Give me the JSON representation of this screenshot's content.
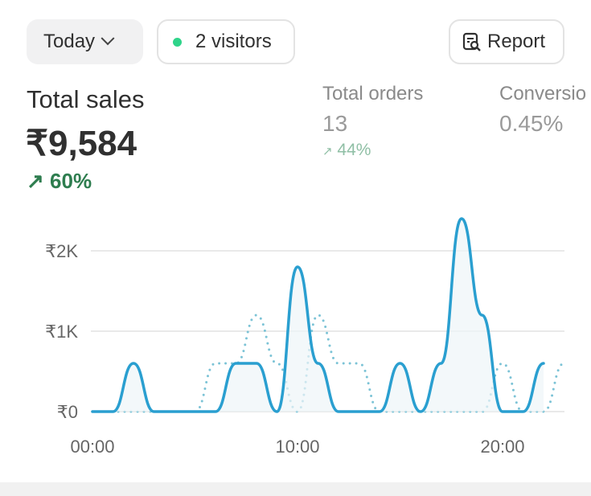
{
  "toolbar": {
    "date_range": "Today",
    "visitors": "2 visitors",
    "report": "Report",
    "live_color": "#2fd48a"
  },
  "metrics": {
    "total_sales": {
      "label": "Total sales",
      "value": "₹9,584",
      "change": "60%",
      "trend": "up"
    },
    "total_orders": {
      "label": "Total orders",
      "value": "13",
      "change": "44%",
      "trend": "up"
    },
    "conversion": {
      "label": "Conversion rate",
      "label_visible": "Conversio",
      "value": "0.45%"
    }
  },
  "chart_data": {
    "type": "line",
    "x": [
      0,
      1,
      2,
      3,
      4,
      5,
      6,
      7,
      8,
      9,
      10,
      11,
      12,
      13,
      14,
      15,
      16,
      17,
      18,
      19,
      20,
      21,
      22,
      23
    ],
    "x_tick_labels": [
      "00:00",
      "10:00",
      "20:00"
    ],
    "y_tick_labels": [
      "₹0",
      "₹1K",
      "₹2K"
    ],
    "ylim": [
      0,
      2400
    ],
    "grid": true,
    "series": [
      {
        "style": "solid",
        "color": "#2a9fd0",
        "values": [
          0,
          0,
          600,
          0,
          0,
          0,
          0,
          600,
          600,
          0,
          1800,
          600,
          0,
          0,
          0,
          600,
          0,
          600,
          2400,
          1200,
          0,
          0,
          600,
          null
        ]
      },
      {
        "style": "dotted",
        "color": "#7cc3d6",
        "values": [
          0,
          0,
          0,
          0,
          0,
          0,
          600,
          600,
          1200,
          600,
          0,
          1200,
          600,
          600,
          0,
          0,
          0,
          0,
          0,
          0,
          600,
          0,
          0,
          600
        ]
      }
    ]
  }
}
